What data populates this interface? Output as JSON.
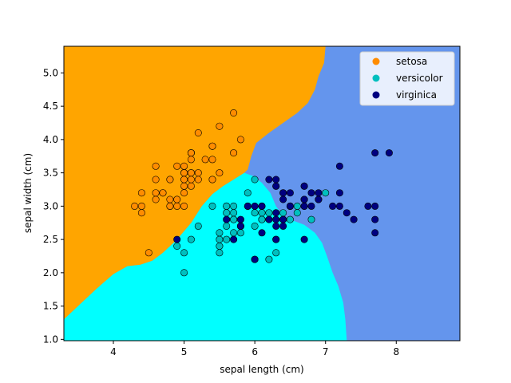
{
  "chart_data": {
    "type": "scatter",
    "title": "",
    "xlabel": "sepal length (cm)",
    "ylabel": "sepal width (cm)",
    "xlim": [
      3.3,
      8.9
    ],
    "ylim": [
      0.98,
      5.4
    ],
    "xticks": [
      "4",
      "5",
      "6",
      "7",
      "8"
    ],
    "yticks": [
      "1.0",
      "1.5",
      "2.0",
      "2.5",
      "3.0",
      "3.5",
      "4.0",
      "4.5",
      "5.0"
    ],
    "grid": false,
    "legend_position": "top-right",
    "decision_regions": [
      {
        "class": "setosa",
        "color": "#ffa500"
      },
      {
        "class": "versicolor",
        "color": "#00ffff"
      },
      {
        "class": "virginica",
        "color": "#6495ed"
      }
    ],
    "series": [
      {
        "name": "setosa",
        "color": "#ff8c00",
        "points": [
          [
            5.1,
            3.5
          ],
          [
            4.9,
            3.0
          ],
          [
            4.7,
            3.2
          ],
          [
            4.6,
            3.1
          ],
          [
            5.0,
            3.6
          ],
          [
            5.4,
            3.9
          ],
          [
            4.6,
            3.4
          ],
          [
            5.0,
            3.4
          ],
          [
            4.4,
            2.9
          ],
          [
            4.9,
            3.1
          ],
          [
            5.4,
            3.7
          ],
          [
            4.8,
            3.4
          ],
          [
            4.8,
            3.0
          ],
          [
            4.3,
            3.0
          ],
          [
            5.8,
            4.0
          ],
          [
            5.7,
            4.4
          ],
          [
            5.4,
            3.9
          ],
          [
            5.1,
            3.5
          ],
          [
            5.7,
            3.8
          ],
          [
            5.1,
            3.8
          ],
          [
            5.4,
            3.4
          ],
          [
            5.1,
            3.7
          ],
          [
            4.6,
            3.6
          ],
          [
            5.1,
            3.3
          ],
          [
            4.8,
            3.4
          ],
          [
            5.0,
            3.0
          ],
          [
            5.0,
            3.4
          ],
          [
            5.2,
            3.5
          ],
          [
            5.2,
            3.4
          ],
          [
            4.7,
            3.2
          ],
          [
            4.8,
            3.1
          ],
          [
            5.4,
            3.4
          ],
          [
            5.2,
            4.1
          ],
          [
            5.5,
            4.2
          ],
          [
            4.9,
            3.1
          ],
          [
            5.0,
            3.2
          ],
          [
            5.5,
            3.5
          ],
          [
            4.9,
            3.6
          ],
          [
            4.4,
            3.0
          ],
          [
            5.1,
            3.4
          ],
          [
            5.0,
            3.5
          ],
          [
            4.5,
            2.3
          ],
          [
            4.4,
            3.2
          ],
          [
            5.0,
            3.5
          ],
          [
            5.1,
            3.8
          ],
          [
            4.8,
            3.0
          ],
          [
            5.1,
            3.8
          ],
          [
            4.6,
            3.2
          ],
          [
            5.3,
            3.7
          ],
          [
            5.0,
            3.3
          ]
        ]
      },
      {
        "name": "versicolor",
        "color": "#00bfbf",
        "points": [
          [
            7.0,
            3.2
          ],
          [
            6.4,
            3.2
          ],
          [
            6.9,
            3.1
          ],
          [
            5.5,
            2.3
          ],
          [
            6.5,
            2.8
          ],
          [
            5.7,
            2.8
          ],
          [
            6.3,
            3.3
          ],
          [
            4.9,
            2.4
          ],
          [
            6.6,
            2.9
          ],
          [
            5.2,
            2.7
          ],
          [
            5.0,
            2.0
          ],
          [
            5.9,
            3.0
          ],
          [
            6.0,
            2.2
          ],
          [
            6.1,
            2.9
          ],
          [
            5.6,
            2.9
          ],
          [
            6.7,
            3.1
          ],
          [
            5.6,
            3.0
          ],
          [
            5.8,
            2.7
          ],
          [
            6.2,
            2.2
          ],
          [
            5.6,
            2.5
          ],
          [
            5.9,
            3.2
          ],
          [
            6.1,
            2.8
          ],
          [
            6.3,
            2.5
          ],
          [
            6.1,
            2.8
          ],
          [
            6.4,
            2.9
          ],
          [
            6.6,
            3.0
          ],
          [
            6.8,
            2.8
          ],
          [
            6.7,
            3.0
          ],
          [
            6.0,
            2.9
          ],
          [
            5.7,
            2.6
          ],
          [
            5.5,
            2.4
          ],
          [
            5.5,
            2.4
          ],
          [
            5.8,
            2.7
          ],
          [
            6.0,
            2.7
          ],
          [
            5.4,
            3.0
          ],
          [
            6.0,
            3.4
          ],
          [
            6.7,
            3.1
          ],
          [
            6.3,
            2.3
          ],
          [
            5.6,
            3.0
          ],
          [
            5.5,
            2.5
          ],
          [
            5.5,
            2.6
          ],
          [
            6.1,
            3.0
          ],
          [
            5.8,
            2.6
          ],
          [
            5.0,
            2.3
          ],
          [
            5.6,
            2.7
          ],
          [
            5.7,
            3.0
          ],
          [
            5.7,
            2.9
          ],
          [
            6.2,
            2.9
          ],
          [
            5.1,
            2.5
          ],
          [
            5.7,
            2.8
          ]
        ]
      },
      {
        "name": "virginica",
        "color": "#000080",
        "points": [
          [
            6.3,
            3.3
          ],
          [
            5.8,
            2.7
          ],
          [
            7.1,
            3.0
          ],
          [
            6.3,
            2.9
          ],
          [
            6.5,
            3.0
          ],
          [
            7.6,
            3.0
          ],
          [
            4.9,
            2.5
          ],
          [
            7.3,
            2.9
          ],
          [
            6.7,
            2.5
          ],
          [
            7.2,
            3.6
          ],
          [
            6.5,
            3.2
          ],
          [
            6.4,
            2.7
          ],
          [
            6.8,
            3.0
          ],
          [
            5.7,
            2.5
          ],
          [
            5.8,
            2.8
          ],
          [
            6.4,
            3.2
          ],
          [
            6.5,
            3.0
          ],
          [
            7.7,
            3.8
          ],
          [
            7.7,
            2.6
          ],
          [
            6.0,
            2.2
          ],
          [
            6.9,
            3.2
          ],
          [
            5.6,
            2.8
          ],
          [
            7.7,
            2.8
          ],
          [
            6.3,
            2.7
          ],
          [
            6.7,
            3.3
          ],
          [
            7.2,
            3.2
          ],
          [
            6.2,
            2.8
          ],
          [
            6.1,
            3.0
          ],
          [
            6.4,
            2.8
          ],
          [
            7.2,
            3.0
          ],
          [
            7.4,
            2.8
          ],
          [
            7.9,
            3.8
          ],
          [
            6.4,
            2.8
          ],
          [
            6.3,
            2.8
          ],
          [
            6.1,
            2.6
          ],
          [
            7.7,
            3.0
          ],
          [
            6.3,
            3.4
          ],
          [
            6.4,
            3.1
          ],
          [
            6.0,
            3.0
          ],
          [
            6.9,
            3.1
          ],
          [
            6.7,
            3.1
          ],
          [
            6.9,
            3.1
          ],
          [
            5.8,
            2.7
          ],
          [
            6.8,
            3.2
          ],
          [
            6.7,
            3.3
          ],
          [
            6.7,
            3.0
          ],
          [
            6.3,
            2.5
          ],
          [
            6.5,
            3.0
          ],
          [
            6.2,
            3.4
          ],
          [
            5.9,
            3.0
          ]
        ]
      }
    ]
  }
}
